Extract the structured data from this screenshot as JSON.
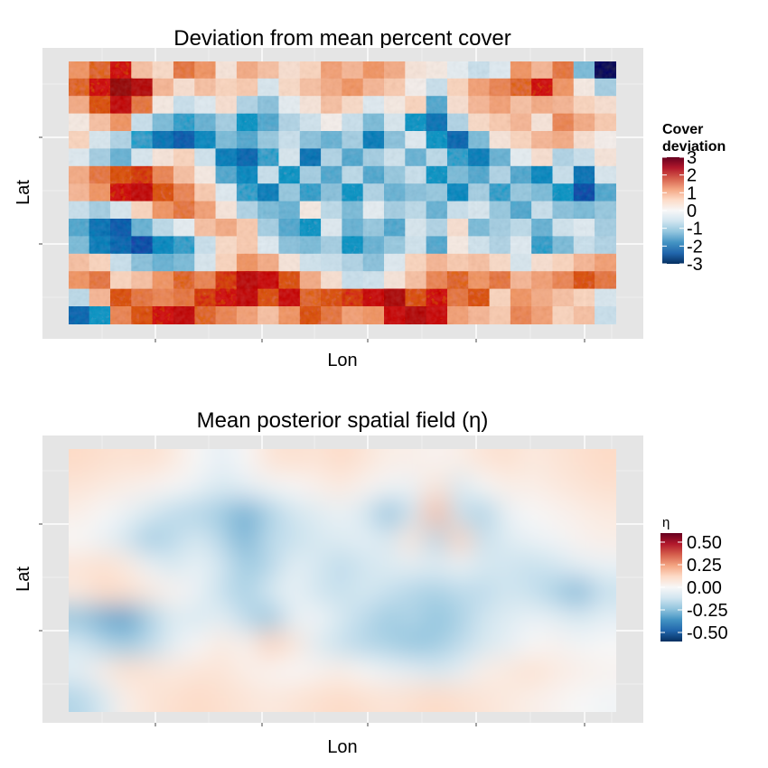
{
  "chart_data": [
    {
      "type": "heatmap",
      "title": "Deviation from mean percent cover",
      "xlabel": "Lon",
      "ylabel": "Lat",
      "legend": {
        "title_lines": [
          "Cover",
          "deviation"
        ],
        "placement": "right",
        "range": [
          -3,
          3
        ],
        "breaks": [
          3,
          2,
          1,
          0,
          -1,
          -2,
          -3
        ],
        "break_labels": [
          "3",
          "2",
          "1",
          "0",
          "-1",
          "-2",
          "-3"
        ]
      },
      "color_scale": [
        "#053061",
        "#2166ac",
        "#4393c3",
        "#92c5de",
        "#d1e5f0",
        "#f7f7f7",
        "#fddbc7",
        "#f4a582",
        "#d6604d",
        "#b2182b",
        "#67001f"
      ],
      "panel_background": "#e5e5e5",
      "grid": true,
      "texture": "fine-grained noisy",
      "values": [
        [
          1.2,
          1.5,
          1.8,
          0.8,
          0.5,
          1.4,
          1.2,
          0.3,
          1.0,
          0.8,
          0.4,
          0.6,
          1.1,
          0.9,
          1.2,
          1.0,
          0.3,
          0.2,
          -0.2,
          -0.6,
          -0.3,
          1.2,
          0.9,
          1.4,
          -1.2,
          -2.8
        ],
        [
          1.5,
          1.8,
          2.5,
          2.2,
          0.9,
          0.4,
          0.8,
          0.6,
          0.7,
          -0.4,
          0.5,
          0.8,
          1.0,
          1.2,
          0.9,
          0.7,
          0.1,
          -0.6,
          0.6,
          1.1,
          1.3,
          1.5,
          1.8,
          1.2,
          0.2,
          -0.9
        ],
        [
          1.0,
          1.6,
          2.0,
          1.4,
          0.2,
          -0.6,
          -0.3,
          0.4,
          -0.8,
          -1.1,
          -0.2,
          0.3,
          0.8,
          0.5,
          -0.3,
          0.2,
          0.6,
          -1.4,
          0.4,
          0.9,
          1.1,
          0.8,
          1.0,
          0.9,
          0.6,
          0.4
        ],
        [
          0.2,
          0.8,
          1.2,
          -0.6,
          -1.2,
          -1.5,
          -1.3,
          -0.9,
          -1.6,
          -1.4,
          -0.8,
          -0.5,
          0.1,
          -0.6,
          -1.2,
          -0.4,
          -1.6,
          -1.9,
          -0.8,
          0.5,
          0.7,
          0.9,
          0.3,
          1.3,
          1.0,
          0.7
        ],
        [
          0.6,
          -0.4,
          -0.8,
          -1.5,
          -1.9,
          -2.1,
          -1.7,
          -1.2,
          -1.4,
          -1.0,
          -0.6,
          -1.1,
          -1.3,
          -0.9,
          -1.8,
          -1.1,
          -0.3,
          -1.6,
          -2.0,
          -1.2,
          0.3,
          0.6,
          0.9,
          1.0,
          0.4,
          0.1
        ],
        [
          -0.3,
          -0.9,
          -1.3,
          -0.4,
          0.3,
          0.6,
          -0.5,
          -1.8,
          -2.0,
          -1.5,
          -0.4,
          -1.9,
          -0.8,
          -1.4,
          -0.9,
          -0.5,
          -1.3,
          -0.7,
          -1.5,
          -1.8,
          -1.3,
          -0.2,
          0.4,
          -0.8,
          -0.6,
          0.3
        ],
        [
          1.0,
          1.4,
          1.6,
          1.7,
          1.3,
          0.8,
          0.2,
          -1.4,
          -1.7,
          -0.6,
          -1.6,
          -0.9,
          -1.4,
          -0.7,
          -1.4,
          -1.0,
          -0.6,
          -1.6,
          -1.2,
          -1.4,
          -0.8,
          -1.4,
          -1.7,
          -0.6,
          -1.9,
          -0.4
        ],
        [
          0.9,
          1.2,
          1.8,
          2.0,
          1.6,
          1.3,
          0.7,
          -0.3,
          -1.5,
          -1.8,
          -1.0,
          -1.5,
          -1.1,
          -1.6,
          -0.8,
          -1.3,
          -1.1,
          -1.0,
          -1.7,
          -0.9,
          -1.5,
          -1.0,
          -1.2,
          -1.6,
          -2.2,
          -1.4
        ],
        [
          -0.6,
          -0.9,
          -0.4,
          0.6,
          1.2,
          1.4,
          1.1,
          0.3,
          -0.8,
          -1.2,
          -1.3,
          0.2,
          -0.7,
          -1.2,
          -0.2,
          -0.9,
          -0.7,
          -1.3,
          -0.6,
          -0.4,
          -1.0,
          -1.4,
          -0.6,
          -1.1,
          -1.2,
          -1.0
        ],
        [
          -1.4,
          -1.9,
          -2.1,
          -1.3,
          -0.7,
          -0.2,
          0.8,
          1.0,
          0.7,
          -0.9,
          -1.4,
          -1.6,
          -0.3,
          -1.3,
          -1.0,
          -1.4,
          -0.4,
          -0.8,
          0.4,
          -1.2,
          -0.9,
          -0.7,
          -1.3,
          -0.5,
          -0.3,
          -0.9
        ],
        [
          -1.2,
          -1.8,
          -2.0,
          -2.2,
          -1.7,
          -1.5,
          -0.6,
          0.5,
          0.7,
          -0.3,
          -1.1,
          -1.2,
          -0.9,
          -1.6,
          -1.3,
          -1.0,
          -0.5,
          -1.4,
          0.2,
          -0.5,
          -0.8,
          -0.3,
          -1.5,
          -1.2,
          -0.6,
          -0.8
        ],
        [
          0.8,
          0.6,
          -0.6,
          -1.1,
          -1.3,
          -1.2,
          -0.4,
          0.6,
          1.2,
          1.0,
          0.3,
          -0.5,
          -0.6,
          -0.8,
          -1.1,
          -0.3,
          0.6,
          0.9,
          0.7,
          0.8,
          0.5,
          -0.4,
          0.4,
          0.6,
          0.9,
          1.1
        ],
        [
          1.2,
          1.4,
          0.6,
          0.8,
          1.2,
          1.5,
          1.3,
          1.7,
          2.1,
          1.9,
          1.6,
          1.0,
          0.4,
          -0.6,
          -0.5,
          0.3,
          0.8,
          1.3,
          1.5,
          1.2,
          1.4,
          0.9,
          1.1,
          1.3,
          1.6,
          1.4
        ],
        [
          -0.7,
          0.9,
          1.6,
          1.4,
          1.3,
          1.4,
          1.7,
          1.8,
          2.0,
          1.6,
          1.9,
          1.5,
          1.6,
          1.7,
          1.9,
          2.3,
          1.6,
          1.8,
          1.4,
          1.6,
          0.6,
          1.2,
          1.0,
          0.8,
          0.6,
          -0.4
        ],
        [
          -2.0,
          -1.6,
          1.3,
          1.6,
          1.8,
          2.0,
          1.5,
          1.3,
          1.1,
          0.8,
          1.2,
          1.6,
          1.4,
          1.1,
          1.2,
          1.9,
          2.2,
          1.9,
          1.1,
          0.9,
          0.7,
          1.3,
          1.1,
          0.6,
          0.8,
          -0.6
        ]
      ]
    },
    {
      "type": "heatmap",
      "title": "Mean posterior spatial field (η)",
      "xlabel": "Lon",
      "ylabel": "Lat",
      "legend": {
        "title_lines": [
          "η"
        ],
        "placement": "right",
        "range": [
          -0.6,
          0.6
        ],
        "breaks": [
          0.5,
          0.25,
          0.0,
          -0.25,
          -0.5
        ],
        "break_labels": [
          "0.50",
          "0.25",
          "0.00",
          "-0.25",
          "-0.50"
        ]
      },
      "color_scale": [
        "#053061",
        "#2166ac",
        "#4393c3",
        "#92c5de",
        "#d1e5f0",
        "#f7f7f7",
        "#fddbc7",
        "#f4a582",
        "#d6604d",
        "#b2182b",
        "#67001f"
      ],
      "panel_background": "#e5e5e5",
      "grid": true,
      "texture": "smooth",
      "values": [
        [
          0.12,
          0.1,
          0.09,
          0.1,
          0.06,
          0.0,
          -0.06,
          0.0,
          0.08,
          0.1,
          0.08,
          0.12,
          0.08,
          0.04,
          0.04,
          0.02,
          0.04,
          0.08,
          0.1,
          0.06,
          0.08,
          0.1,
          0.12
        ],
        [
          0.08,
          0.06,
          0.04,
          0.02,
          0.0,
          -0.04,
          -0.1,
          -0.06,
          -0.02,
          0.0,
          0.03,
          0.06,
          0.02,
          -0.02,
          -0.04,
          0.08,
          -0.1,
          0.0,
          0.04,
          0.04,
          0.06,
          0.08,
          0.1
        ],
        [
          0.04,
          0.0,
          -0.04,
          -0.1,
          -0.16,
          -0.18,
          -0.22,
          -0.3,
          -0.2,
          -0.12,
          -0.08,
          -0.04,
          -0.1,
          -0.26,
          -0.12,
          0.2,
          -0.14,
          -0.2,
          -0.04,
          0.0,
          0.02,
          0.04,
          0.06
        ],
        [
          0.0,
          -0.04,
          -0.12,
          -0.22,
          -0.16,
          -0.1,
          -0.18,
          -0.28,
          -0.16,
          -0.14,
          -0.1,
          -0.08,
          -0.06,
          -0.1,
          0.08,
          -0.18,
          0.14,
          -0.14,
          -0.08,
          -0.04,
          -0.02,
          0.02,
          0.04
        ],
        [
          0.08,
          0.1,
          0.06,
          -0.04,
          -0.1,
          -0.04,
          -0.12,
          -0.22,
          -0.18,
          -0.06,
          -0.1,
          -0.16,
          -0.12,
          -0.08,
          -0.06,
          -0.08,
          -0.04,
          -0.1,
          -0.12,
          -0.14,
          -0.12,
          -0.06,
          -0.04
        ],
        [
          0.06,
          0.12,
          0.1,
          0.06,
          0.02,
          -0.04,
          -0.14,
          -0.2,
          -0.1,
          -0.04,
          -0.12,
          -0.14,
          -0.1,
          -0.14,
          -0.18,
          -0.2,
          -0.16,
          -0.16,
          -0.12,
          -0.14,
          -0.2,
          -0.28,
          -0.14
        ],
        [
          -0.24,
          -0.3,
          -0.34,
          -0.2,
          -0.08,
          -0.1,
          -0.06,
          -0.16,
          -0.24,
          -0.06,
          -0.02,
          -0.1,
          -0.16,
          -0.22,
          -0.18,
          -0.24,
          -0.2,
          -0.12,
          -0.08,
          -0.04,
          -0.06,
          -0.1,
          -0.06
        ],
        [
          -0.1,
          -0.18,
          -0.22,
          -0.16,
          -0.06,
          0.0,
          0.06,
          0.02,
          0.14,
          0.08,
          -0.08,
          -0.14,
          -0.18,
          -0.2,
          -0.24,
          -0.22,
          -0.16,
          -0.1,
          -0.06,
          0.0,
          0.02,
          -0.02,
          0.0
        ],
        [
          -0.06,
          0.04,
          0.1,
          0.08,
          0.06,
          0.08,
          0.08,
          0.04,
          0.02,
          0.0,
          0.02,
          0.04,
          0.0,
          -0.04,
          -0.06,
          -0.1,
          -0.06,
          0.04,
          0.06,
          0.1,
          0.06,
          0.04,
          0.02
        ],
        [
          -0.18,
          -0.1,
          0.04,
          0.08,
          0.1,
          0.12,
          0.1,
          0.08,
          0.06,
          0.08,
          0.1,
          0.12,
          0.1,
          0.08,
          0.1,
          0.12,
          0.1,
          0.08,
          0.06,
          0.04,
          0.02,
          0.0,
          -0.02
        ]
      ]
    }
  ]
}
